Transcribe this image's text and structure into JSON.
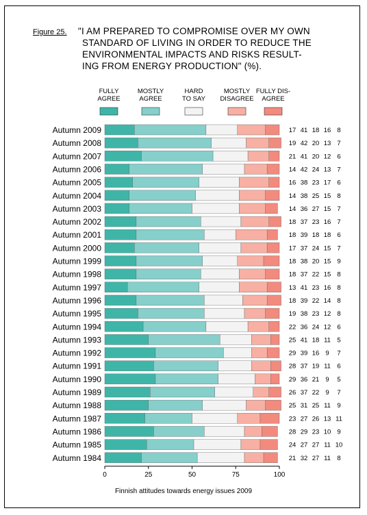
{
  "figure_label": "Figure 25.",
  "title_lines": [
    "\"I AM PREPARED TO COMPROMISE OVER MY OWN",
    "STANDARD OF LIVING IN ORDER TO REDUCE THE",
    "ENVIRONMENTAL IMPACTS AND RISKS RESULT-",
    "ING  FROM ENERGY PRODUCTION\" (%)."
  ],
  "footer": "Finnish attitudes towards energy issues 2009",
  "chart_data": {
    "type": "bar",
    "stacked": true,
    "orientation": "horizontal",
    "xlim": [
      0,
      100
    ],
    "x_ticks": [
      "0",
      "25",
      "50",
      "75",
      "100"
    ],
    "legend_position": "top",
    "categories": [
      "Autumn 2009",
      "Autumn 2008",
      "Autumn 2007",
      "Autumn 2006",
      "Autumn 2005",
      "Autumn 2004",
      "Autumn 2003",
      "Autumn 2002",
      "Autumn 2001",
      "Autumn 2000",
      "Autumn 1999",
      "Autumn 1998",
      "Autumn 1997",
      "Autumn 1996",
      "Autumn 1995",
      "Autumn 1994",
      "Autumn 1993",
      "Autumn 1992",
      "Autumn 1991",
      "Autumn 1990",
      "Autumn 1989",
      "Autumn 1988",
      "Autumn 1987",
      "Autumn 1986",
      "Autumn 1985",
      "Autumn 1984"
    ],
    "series": [
      {
        "name": "FULLY AGREE",
        "label_lines": [
          "FULLY",
          "AGREE"
        ],
        "color": "#3fb5a8",
        "values": [
          17,
          19,
          21,
          14,
          16,
          14,
          14,
          18,
          18,
          17,
          18,
          18,
          13,
          18,
          19,
          22,
          25,
          29,
          28,
          29,
          26,
          25,
          23,
          28,
          24,
          21
        ]
      },
      {
        "name": "MOSTLY AGREE",
        "label_lines": [
          "MOSTLY",
          "AGREE"
        ],
        "color": "#86cfcb",
        "values": [
          41,
          42,
          41,
          42,
          38,
          38,
          36,
          37,
          39,
          37,
          38,
          37,
          41,
          39,
          38,
          36,
          41,
          39,
          37,
          36,
          37,
          31,
          27,
          29,
          27,
          32
        ]
      },
      {
        "name": "HARD TO SAY",
        "label_lines": [
          "HARD",
          "TO SAY"
        ],
        "color": "#f3f3f3",
        "values": [
          18,
          20,
          20,
          24,
          23,
          25,
          27,
          23,
          18,
          24,
          20,
          22,
          23,
          22,
          23,
          24,
          18,
          16,
          19,
          21,
          22,
          25,
          26,
          23,
          27,
          27
        ]
      },
      {
        "name": "MOSTLY DISAGREE",
        "label_lines": [
          "MOSTLY",
          "DISAGREE"
        ],
        "color": "#f7b0a3",
        "values": [
          16,
          13,
          12,
          13,
          17,
          15,
          15,
          16,
          18,
          15,
          15,
          15,
          16,
          14,
          12,
          12,
          11,
          9,
          11,
          9,
          9,
          11,
          13,
          10,
          11,
          11
        ]
      },
      {
        "name": "FULLY DISAGREE",
        "label_lines": [
          "FULLY DIS-",
          "AGREE"
        ],
        "color": "#f28a7e",
        "values": [
          8,
          7,
          6,
          7,
          6,
          8,
          7,
          7,
          6,
          7,
          9,
          8,
          8,
          8,
          8,
          6,
          5,
          7,
          6,
          5,
          7,
          9,
          11,
          9,
          10,
          8
        ]
      }
    ]
  }
}
